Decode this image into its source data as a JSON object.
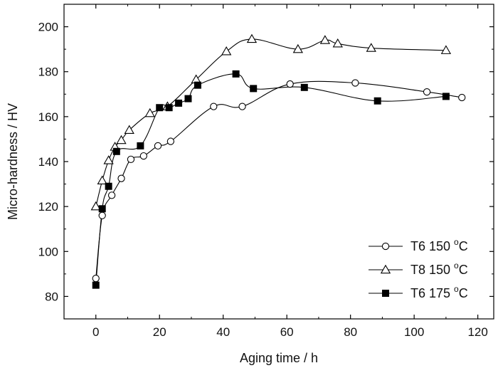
{
  "chart_data": {
    "type": "line",
    "title": "",
    "xlabel": "Aging time / h",
    "ylabel": "Micro-hardness / HV",
    "xlim": [
      -10,
      125
    ],
    "ylim": [
      70,
      210
    ],
    "xticks": [
      0,
      20,
      40,
      60,
      80,
      100,
      120
    ],
    "yticks": [
      80,
      100,
      120,
      140,
      160,
      180,
      200
    ],
    "grid": false,
    "legend_position": "bottom-right",
    "series": [
      {
        "name": "T6 150 °C",
        "marker": "open-circle",
        "x": [
          0,
          2,
          5,
          8,
          11,
          15,
          19.5,
          23.5,
          37,
          46,
          61,
          81.5,
          104,
          115
        ],
        "y": [
          88,
          116,
          125,
          132.5,
          141,
          142.5,
          147,
          149,
          164.5,
          164.5,
          174.5,
          175,
          171,
          168.5
        ]
      },
      {
        "name": "T8 150 °C",
        "marker": "open-triangle",
        "x": [
          0,
          2,
          4,
          6,
          8,
          10.5,
          17,
          22.5,
          31.5,
          41,
          49,
          63.5,
          72,
          76,
          86.5,
          110
        ],
        "y": [
          120,
          131.5,
          140.5,
          146.5,
          149.5,
          154,
          161.5,
          164.5,
          176.5,
          189,
          194.5,
          190,
          194,
          192.5,
          190.5,
          189.5
        ]
      },
      {
        "name": "T6 175 °C",
        "marker": "filled-square",
        "x": [
          0,
          2,
          4,
          6.5,
          14,
          20,
          23,
          26,
          29,
          32,
          44,
          49.5,
          65.5,
          88.5,
          110
        ],
        "y": [
          85,
          119,
          129,
          144.5,
          147,
          164,
          164,
          166,
          168,
          174,
          179,
          172.5,
          173,
          167,
          169
        ]
      }
    ],
    "legend": {
      "entries": [
        {
          "label_main": "T6 150 ",
          "label_sup": "o",
          "label_end": "C"
        },
        {
          "label_main": "T8 150 ",
          "label_sup": "o",
          "label_end": "C"
        },
        {
          "label_main": "T6 175 ",
          "label_sup": "o",
          "label_end": "C"
        }
      ]
    }
  }
}
